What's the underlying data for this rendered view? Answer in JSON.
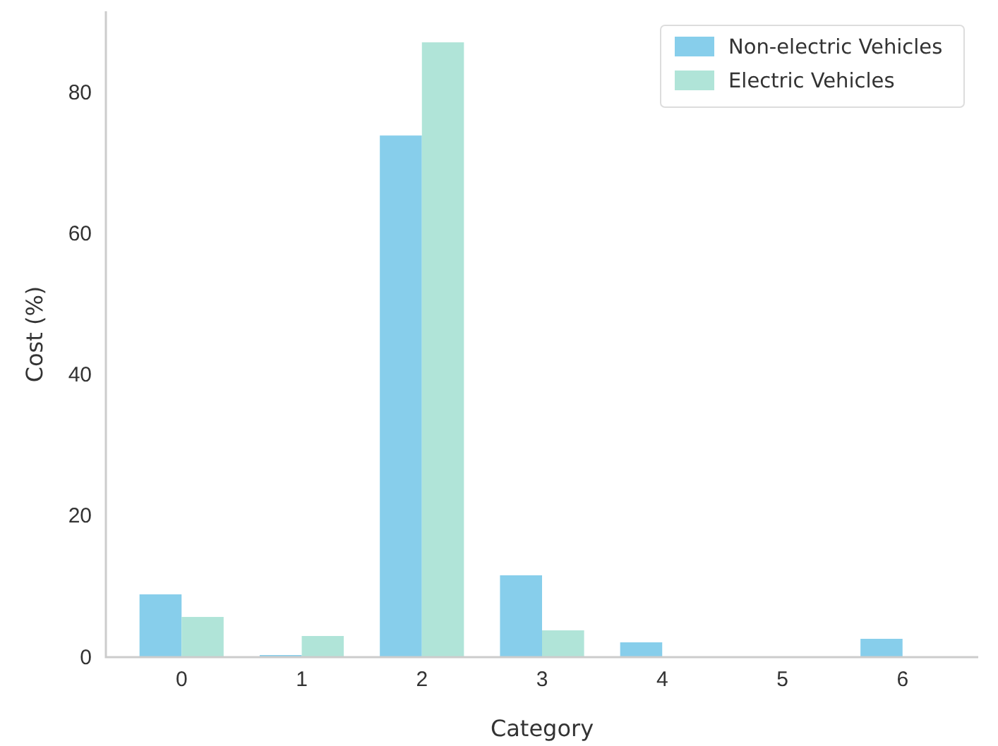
{
  "chart_data": {
    "type": "bar",
    "xlabel": "Category",
    "ylabel": "Cost (%)",
    "categories": [
      "0",
      "1",
      "2",
      "3",
      "4",
      "5",
      "6"
    ],
    "series": [
      {
        "name": "Non-electric Vehicles",
        "color": "#87ceeb",
        "values": [
          8.9,
          0.3,
          73.9,
          11.6,
          2.1,
          0,
          2.6
        ]
      },
      {
        "name": "Electric Vehicles",
        "color": "#b0e4d8",
        "values": [
          5.7,
          3.0,
          87.1,
          3.8,
          0,
          0,
          0
        ]
      }
    ],
    "ylim": [
      0,
      91.5
    ],
    "yticks": [
      0,
      20,
      40,
      60,
      80
    ],
    "grid": false,
    "legend": "top right"
  }
}
